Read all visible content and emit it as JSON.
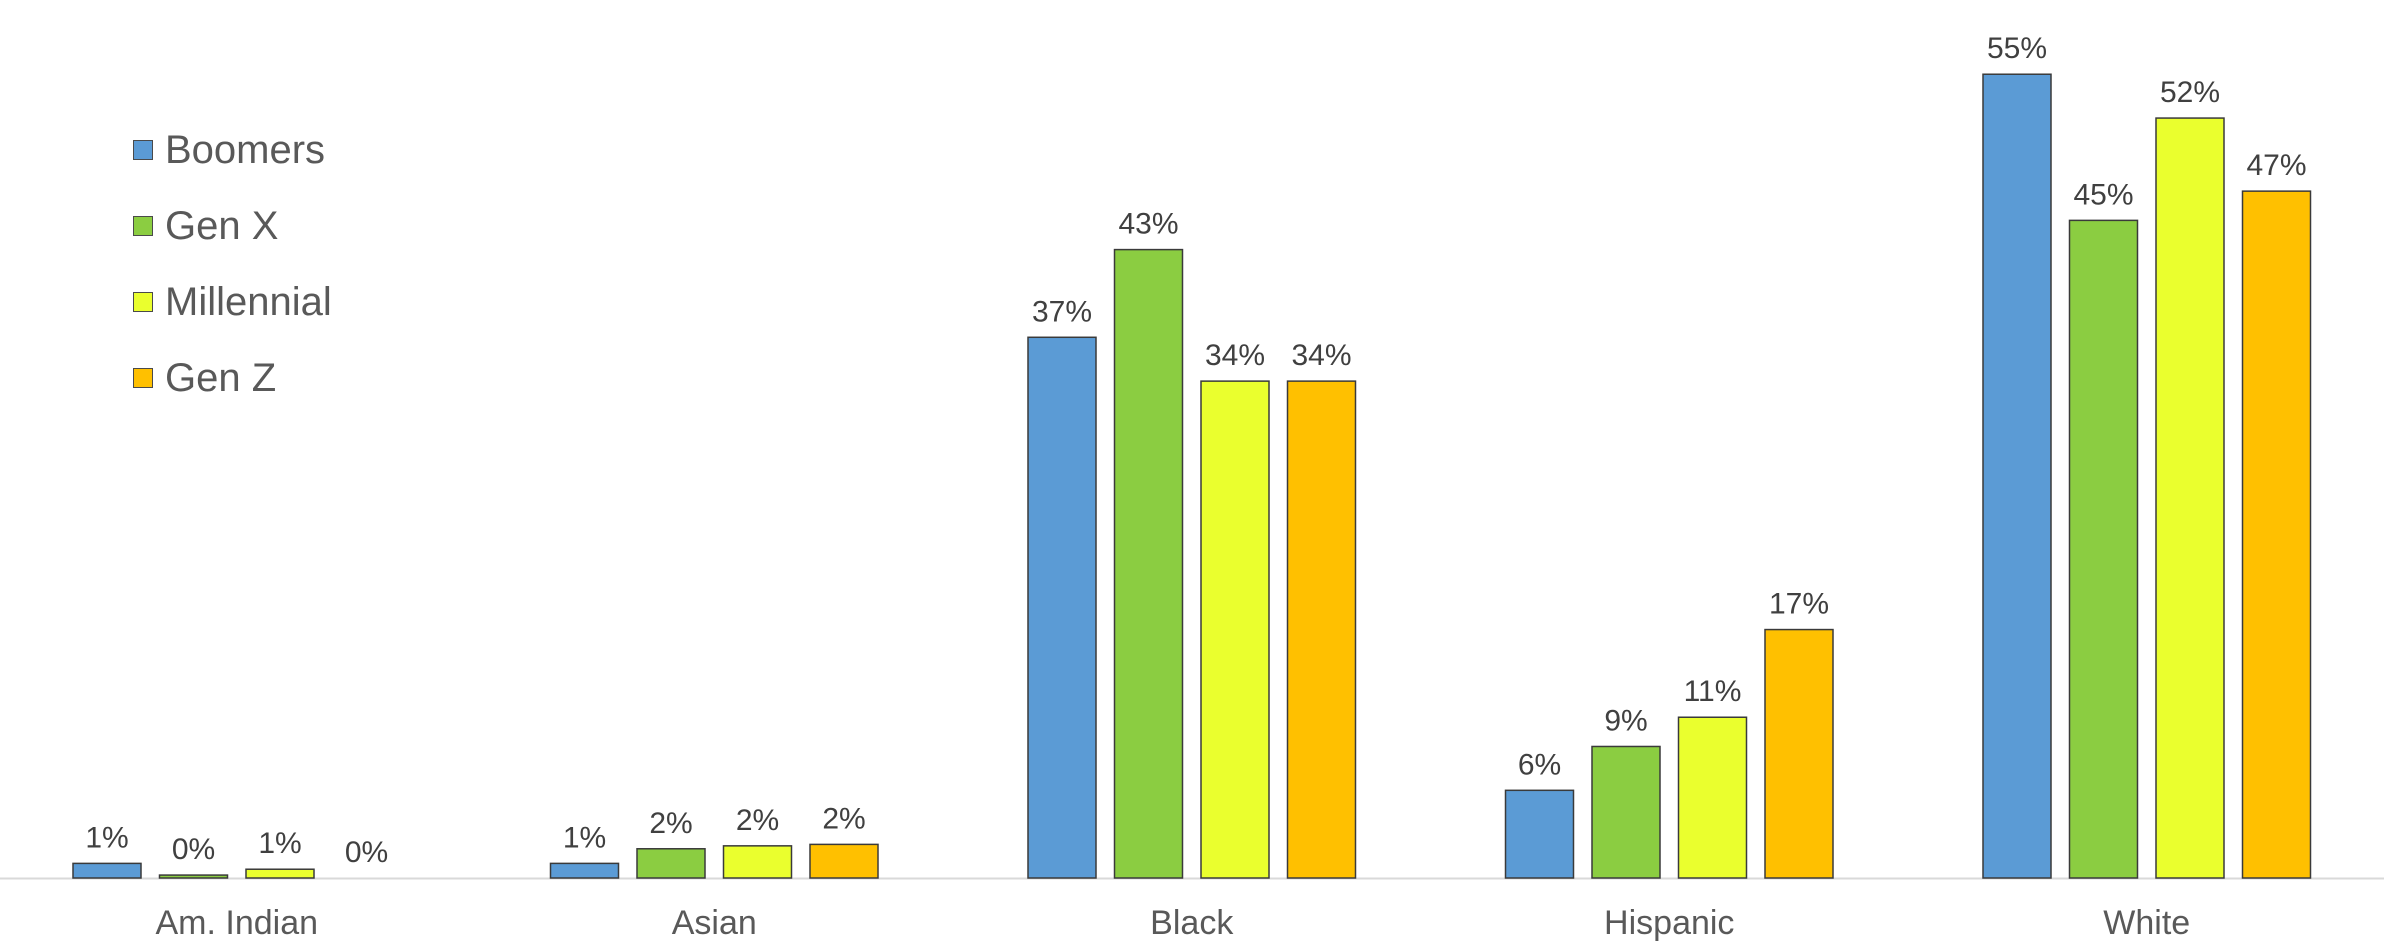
{
  "chart_data": {
    "type": "bar",
    "categories": [
      "Am. Indian",
      "Asian",
      "Black",
      "Hispanic",
      "White"
    ],
    "series": [
      {
        "name": "Boomers",
        "color": "#5b9bd5",
        "values": [
          1,
          1,
          37,
          6,
          55
        ],
        "labels": [
          "1%",
          "1%",
          "37%",
          "6%",
          "55%"
        ]
      },
      {
        "name": "Gen X",
        "color": "#8bcd41",
        "values": [
          0.2,
          2,
          43,
          9,
          45
        ],
        "labels": [
          "0%",
          "2%",
          "43%",
          "9%",
          "45%"
        ]
      },
      {
        "name": "Millennial",
        "color": "#eaff2e",
        "values": [
          0.6,
          2.2,
          34,
          11,
          52
        ],
        "labels": [
          "1%",
          "2%",
          "34%",
          "11%",
          "52%"
        ]
      },
      {
        "name": "Gen Z",
        "color": "#ffc000",
        "values": [
          0,
          2.3,
          34,
          17,
          47
        ],
        "labels": [
          "0%",
          "2%",
          "34%",
          "17%",
          "47%"
        ]
      }
    ],
    "ylim": [
      0,
      57
    ],
    "grid": false,
    "legend_position": "top-left",
    "title": "",
    "xlabel": "",
    "ylabel": ""
  }
}
